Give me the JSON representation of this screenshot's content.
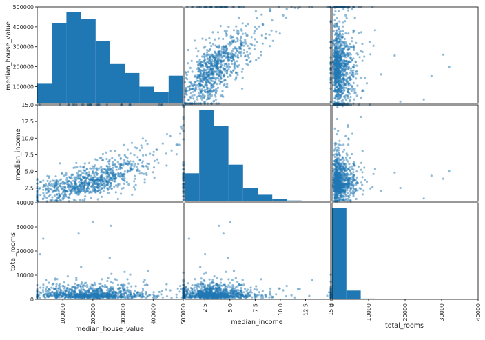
{
  "chart_data": {
    "type": "scatter_matrix",
    "variables": [
      "median_house_value",
      "median_income",
      "total_rooms"
    ],
    "colors": {
      "marker": "#1f77b4",
      "frame": "#000000",
      "background": "#ffffff"
    },
    "axes": {
      "median_house_value": {
        "range": [
          15000,
          500001
        ],
        "ticks": [
          100000,
          200000,
          300000,
          400000,
          500000
        ],
        "tick_labels": [
          "100000",
          "200000",
          "300000",
          "400000",
          "500000"
        ]
      },
      "median_income": {
        "range": [
          0.5,
          15.0
        ],
        "ticks": [
          2.5,
          5.0,
          7.5,
          10.0,
          12.5,
          15.0
        ],
        "tick_labels": [
          "2.5",
          "5.0",
          "7.5",
          "10.0",
          "12.5",
          "15.0"
        ]
      },
      "total_rooms": {
        "range": [
          0,
          40000
        ],
        "ticks": [
          0,
          10000,
          20000,
          30000,
          40000
        ],
        "tick_labels": [
          "0",
          "10000",
          "20000",
          "30000",
          "40000"
        ]
      }
    },
    "histograms": {
      "median_house_value": {
        "bin_edges": [
          15000,
          63500,
          112000,
          160500,
          209000,
          257500,
          306000,
          354500,
          403000,
          451500,
          500001
        ],
        "counts": [
          1050,
          4300,
          4850,
          4500,
          3330,
          2100,
          1620,
          900,
          610,
          1480
        ]
      },
      "median_income": {
        "bin_edges": [
          0.5,
          1.95,
          3.4,
          4.85,
          6.3,
          7.75,
          9.2,
          10.65,
          12.1,
          13.55,
          15.0
        ],
        "counts": [
          2250,
          7300,
          6050,
          2950,
          1070,
          530,
          190,
          70,
          30,
          50
        ]
      },
      "total_rooms": {
        "bin_edges": [
          0,
          3932,
          7864,
          11796,
          15728,
          19660,
          23592,
          27524,
          31456,
          35388,
          39320
        ],
        "counts": [
          18550,
          1790,
          155,
          50,
          20,
          8,
          4,
          2,
          1,
          1
        ]
      }
    },
    "scatter_diagonal_alpha": 0.5
  }
}
